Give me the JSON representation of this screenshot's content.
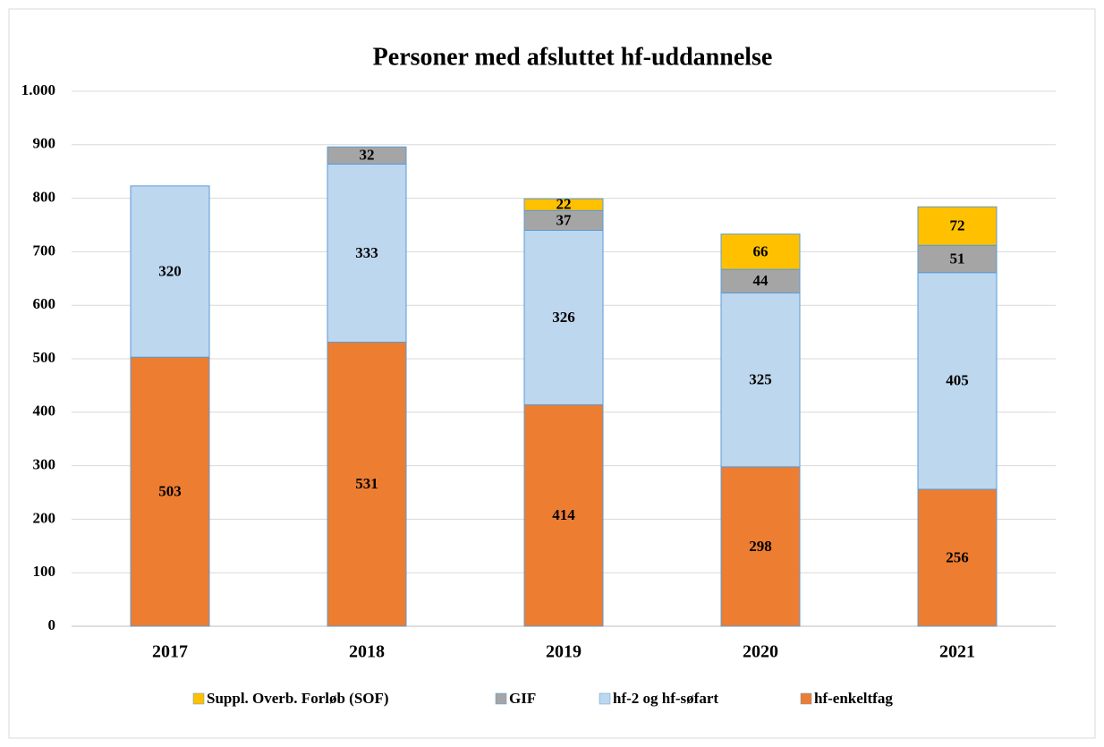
{
  "chart_data": {
    "type": "bar",
    "stacked": true,
    "title": "Personer med afsluttet hf-uddannelse",
    "categories": [
      "2017",
      "2018",
      "2019",
      "2020",
      "2021"
    ],
    "series": [
      {
        "name": "Suppl. Overb. Forløb (SOF)",
        "color": "#ffc000",
        "values": [
          null,
          null,
          22,
          66,
          72
        ]
      },
      {
        "name": "GIF",
        "color": "#a5a5a5",
        "values": [
          null,
          32,
          37,
          44,
          51
        ]
      },
      {
        "name": "hf-2 og hf-søfart",
        "color": "#bdd7ee",
        "values": [
          320,
          333,
          326,
          325,
          405
        ]
      },
      {
        "name": "hf-enkeltfag",
        "color": "#ed7d31",
        "values": [
          503,
          531,
          414,
          298,
          256
        ]
      }
    ],
    "ylim": [
      0,
      1000
    ],
    "yticks": [
      0,
      100,
      200,
      300,
      400,
      500,
      600,
      700,
      800,
      900,
      {
        "value": 1000,
        "label": "1.000"
      }
    ],
    "grid": true,
    "legend": "bottom"
  }
}
